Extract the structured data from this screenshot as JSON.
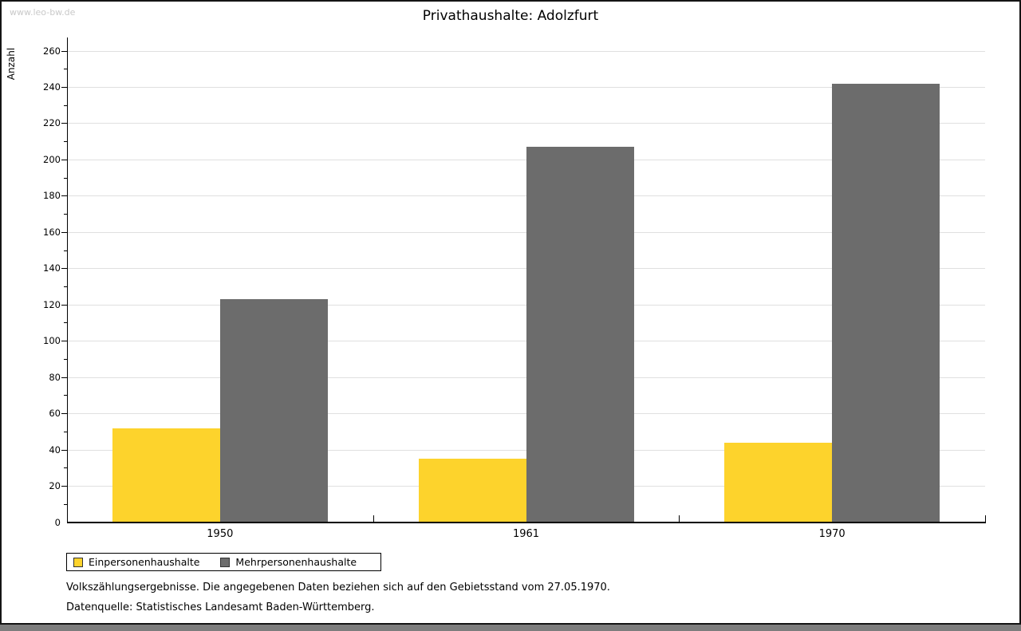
{
  "watermark": "www.leo-bw.de",
  "title": "Privathaushalte: Adolzfurt",
  "chart_data": {
    "type": "bar",
    "title": "Privathaushalte: Adolzfurt",
    "categories": [
      "1950",
      "1961",
      "1970"
    ],
    "series": [
      {
        "name": "Einpersonenhaushalte",
        "color": "#FDD32C",
        "values": [
          52,
          35,
          44
        ]
      },
      {
        "name": "Mehrpersonenhaushalte",
        "color": "#6C6C6C",
        "values": [
          123,
          207,
          242
        ]
      }
    ],
    "xlabel": "",
    "ylabel": "Anzahl",
    "ylim": [
      0,
      260
    ],
    "y_major_step": 20,
    "y_minor_step": 10,
    "grid": true,
    "legend_position": "bottom-left"
  },
  "footnotes": [
    "Volkszählungsergebnisse. Die angegebenen Daten beziehen sich auf den Gebietsstand vom 27.05.1970.",
    "Datenquelle: Statistisches Landesamt Baden-Württemberg."
  ],
  "colors": {
    "grid": "#E0E0E0",
    "axis": "#000000",
    "watermark": "#C9C9C9",
    "bottom_strip": "#7D7D7D"
  }
}
